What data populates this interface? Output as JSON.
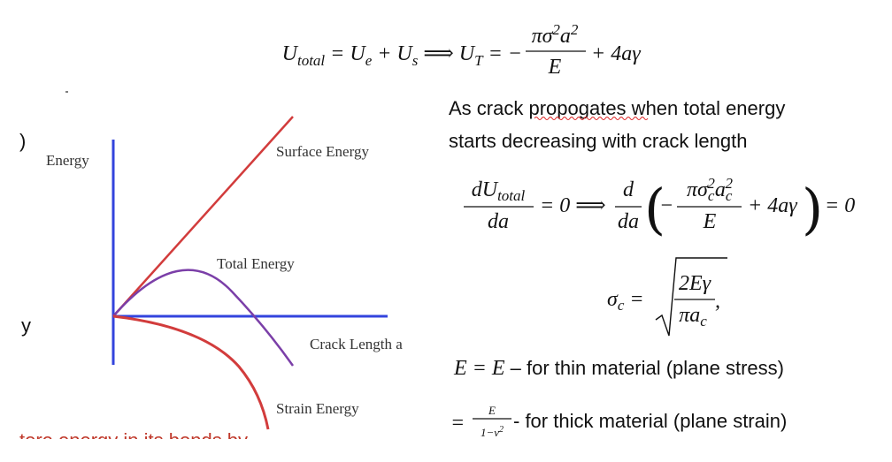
{
  "equation1": {
    "u": "U",
    "total": "total",
    "eq": " = U",
    "e": "e",
    "plus": " + U",
    "s": "s",
    "implies": " ⟹ U",
    "t": "T",
    "minus": " = −",
    "num_a": "πσ",
    "sq1": "2",
    "num_b": "a",
    "sq2": "2",
    "den": "E",
    "tail": "+ 4aγ"
  },
  "explanation": {
    "before": "As crack ",
    "misspelled": "propogates",
    "after": " when total energy",
    "line2": "starts decreasing with crack length"
  },
  "equation2": {
    "num": "dU",
    "num_sub": "total",
    "den": "da",
    "eq": "= 0 ⟹",
    "d": "d",
    "dda": "da",
    "open": "(",
    "minus": "−",
    "num_a": "πσ",
    "sub1": "c",
    "sq1": "2",
    "num_b": "a",
    "sub2": "c",
    "sq2": "2",
    "den2": "E",
    "tail": "+ 4aγ",
    "close": ")",
    "end": "= 0"
  },
  "equation3": {
    "sigma": "σ",
    "sub": "c",
    "eq": " =",
    "num": "2Eγ",
    "den": "πa",
    "den_sub": "c",
    "comma": ","
  },
  "thin": {
    "math": "E = E",
    "text": " – for thin material (plane stress)"
  },
  "thick": {
    "eq": "=",
    "num": "E",
    "den": "1−ν",
    "den_sup": "2",
    "text": "- for thick material (plane strain)"
  },
  "diagram": {
    "y_axis_label": "Energy",
    "x_axis_label": "Crack Length a",
    "surface": "Surface Energy",
    "total": "Total Energy",
    "strain": "Strain Energy",
    "frag_paren": ")",
    "frag_y": "y",
    "frag_bottom": "tore energy in its bonds by"
  }
}
